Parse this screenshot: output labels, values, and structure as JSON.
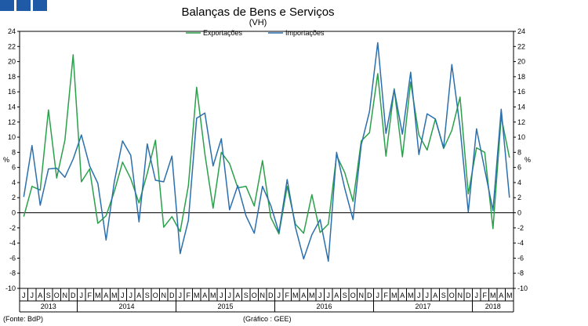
{
  "header": {
    "blocks": [
      "block-1",
      "block-2",
      "block-3"
    ],
    "block_color": "#1f5aa6"
  },
  "footer": {
    "source": "(Fonte: BdP)",
    "credit": "(Gráfico : GEE)"
  },
  "chart_data": {
    "type": "line",
    "title": "Balanças de Bens e Serviços",
    "subtitle": "(VH)",
    "ylabel_left": "%",
    "ylabel_right": "%",
    "ylim": [
      -10,
      24
    ],
    "yticks": [
      -10,
      -8,
      -6,
      -4,
      -2,
      0,
      2,
      4,
      6,
      8,
      10,
      12,
      14,
      16,
      18,
      20,
      22,
      24
    ],
    "legend_position": "top-center",
    "grid": false,
    "month_labels": [
      "J",
      "J",
      "A",
      "S",
      "O",
      "N",
      "D",
      "J",
      "F",
      "M",
      "A",
      "M",
      "J",
      "J",
      "A",
      "S",
      "O",
      "N",
      "D",
      "J",
      "F",
      "M",
      "A",
      "M",
      "J",
      "J",
      "A",
      "S",
      "O",
      "N",
      "D",
      "J",
      "F",
      "M",
      "A",
      "M",
      "J",
      "J",
      "A",
      "S",
      "O",
      "N",
      "D",
      "J",
      "F",
      "M",
      "A",
      "M",
      "J",
      "J",
      "A",
      "S",
      "O",
      "N",
      "D",
      "J",
      "F",
      "M",
      "A",
      "M"
    ],
    "years": [
      {
        "label": "2013",
        "start": 0,
        "end": 7
      },
      {
        "label": "2014",
        "start": 7,
        "end": 19
      },
      {
        "label": "2015",
        "start": 19,
        "end": 31
      },
      {
        "label": "2016",
        "start": 31,
        "end": 43
      },
      {
        "label": "2017",
        "start": 43,
        "end": 55
      },
      {
        "label": "2018",
        "start": 55,
        "end": 60
      }
    ],
    "series": [
      {
        "name": "Exportações",
        "color": "#2aa04a",
        "values": [
          -0.5,
          3.5,
          3.0,
          13.6,
          4.6,
          9.6,
          20.9,
          4.1,
          5.8,
          -1.4,
          -0.4,
          2.8,
          6.7,
          4.5,
          1.3,
          5.2,
          9.6,
          -1.9,
          -0.5,
          -2.5,
          3.6,
          16.6,
          7.8,
          0.6,
          8.0,
          6.5,
          3.3,
          3.5,
          0.9,
          6.9,
          -0.6,
          -2.8,
          3.5,
          -1.5,
          -2.7,
          2.4,
          -2.6,
          -1.5,
          7.6,
          5.3,
          1.5,
          9.5,
          10.6,
          18.4,
          7.5,
          16.4,
          7.4,
          17.3,
          10.3,
          8.3,
          12.4,
          8.5,
          10.9,
          15.3,
          2.5,
          8.6,
          8.0,
          -2.1,
          12.7,
          7.3
        ]
      },
      {
        "name": "Importações",
        "color": "#2b6fad",
        "values": [
          2.1,
          8.9,
          1.0,
          5.8,
          5.9,
          4.7,
          7.1,
          10.3,
          6.2,
          3.9,
          -3.6,
          4.1,
          9.5,
          7.6,
          -1.2,
          9.1,
          4.3,
          4.1,
          7.5,
          -5.4,
          -1.0,
          12.5,
          13.2,
          6.2,
          9.8,
          0.4,
          3.6,
          -0.4,
          -2.7,
          3.5,
          1.0,
          -2.6,
          4.4,
          -1.9,
          -6.1,
          -2.9,
          -0.9,
          -6.4,
          8.0,
          3.2,
          -0.9,
          9.0,
          13.4,
          22.5,
          10.5,
          16.3,
          10.4,
          18.6,
          7.7,
          13.1,
          12.4,
          8.6,
          19.6,
          11.3,
          0.1,
          11.1,
          5.7,
          0.3,
          13.7,
          2.0
        ]
      }
    ]
  }
}
